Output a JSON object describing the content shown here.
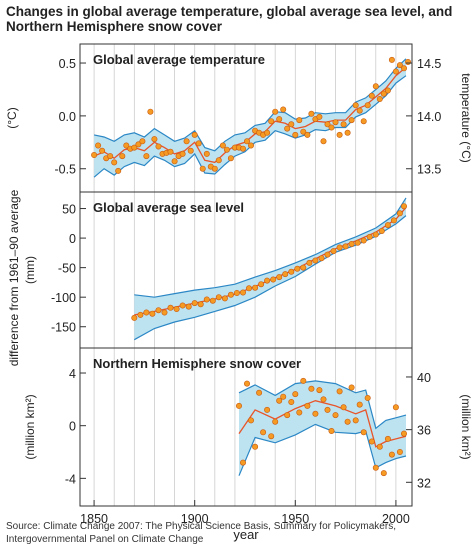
{
  "title": "Changes in global average temperature, global average sea level, and Northern Hemisphere snow cover",
  "source": "Source: Climate Change 2007: The Physical Science Basis, Summary for Policymakers, Intergovernmental Panel on Climate Change",
  "colors": {
    "band": "#bde3f1",
    "band_edge": "#2b87c5",
    "curve": "#e8552a",
    "point": "#f59a23",
    "point_edge": "#c85a12",
    "grid": "#cccccc"
  },
  "chart_data": [
    {
      "type": "line",
      "title": "Global average temperature",
      "ylabel": "(°C)",
      "y2label": "temperature (°C)",
      "xlim": [
        1843,
        2008
      ],
      "ylim": [
        -0.72,
        0.68
      ],
      "yticks": [
        0.5,
        0.0,
        -0.5
      ],
      "ytick_labels": [
        "0.5",
        "0.0",
        "-0.5"
      ],
      "y2_ticks": [
        14.5,
        14.0,
        13.5
      ],
      "y2_offset": 14.0,
      "ytick_labels_right": [
        "14.5",
        "14.0",
        "13.5"
      ],
      "smooth": {
        "x": [
          1850,
          1855,
          1860,
          1865,
          1870,
          1875,
          1880,
          1885,
          1890,
          1895,
          1900,
          1905,
          1910,
          1915,
          1920,
          1925,
          1930,
          1935,
          1940,
          1945,
          1950,
          1955,
          1960,
          1965,
          1970,
          1975,
          1980,
          1985,
          1990,
          1995,
          2000,
          2005
        ],
        "y": [
          -0.38,
          -0.34,
          -0.4,
          -0.32,
          -0.3,
          -0.33,
          -0.25,
          -0.3,
          -0.36,
          -0.33,
          -0.25,
          -0.42,
          -0.44,
          -0.35,
          -0.28,
          -0.25,
          -0.17,
          -0.15,
          -0.05,
          -0.07,
          -0.12,
          -0.1,
          -0.05,
          -0.06,
          -0.04,
          -0.04,
          0.06,
          0.1,
          0.18,
          0.26,
          0.38,
          0.46
        ]
      },
      "band_upper": [
        -0.18,
        -0.2,
        -0.24,
        -0.18,
        -0.16,
        -0.2,
        -0.12,
        -0.18,
        -0.24,
        -0.21,
        -0.14,
        -0.3,
        -0.33,
        -0.24,
        -0.18,
        -0.16,
        -0.09,
        -0.07,
        0.04,
        0.03,
        -0.03,
        -0.02,
        0.03,
        0.02,
        0.03,
        0.03,
        0.13,
        0.17,
        0.25,
        0.33,
        0.45,
        0.54
      ],
      "band_lower": [
        -0.58,
        -0.5,
        -0.56,
        -0.48,
        -0.44,
        -0.47,
        -0.38,
        -0.42,
        -0.48,
        -0.45,
        -0.36,
        -0.54,
        -0.55,
        -0.46,
        -0.38,
        -0.34,
        -0.25,
        -0.23,
        -0.14,
        -0.17,
        -0.21,
        -0.18,
        -0.13,
        -0.14,
        -0.11,
        -0.11,
        -0.01,
        0.03,
        0.11,
        0.19,
        0.31,
        0.38
      ],
      "points": {
        "x": [
          1850,
          1852,
          1854,
          1856,
          1858,
          1860,
          1862,
          1864,
          1866,
          1868,
          1870,
          1872,
          1874,
          1876,
          1878,
          1880,
          1882,
          1884,
          1886,
          1888,
          1890,
          1892,
          1894,
          1896,
          1898,
          1900,
          1902,
          1904,
          1906,
          1908,
          1910,
          1912,
          1914,
          1916,
          1918,
          1920,
          1922,
          1924,
          1926,
          1928,
          1930,
          1932,
          1934,
          1936,
          1938,
          1940,
          1942,
          1944,
          1946,
          1948,
          1950,
          1952,
          1954,
          1956,
          1958,
          1960,
          1962,
          1964,
          1966,
          1968,
          1970,
          1972,
          1974,
          1976,
          1978,
          1980,
          1982,
          1984,
          1986,
          1988,
          1990,
          1992,
          1994,
          1996,
          1998,
          2000,
          2002,
          2004,
          2006
        ],
        "y": [
          -0.37,
          -0.28,
          -0.33,
          -0.4,
          -0.38,
          -0.44,
          -0.52,
          -0.38,
          -0.28,
          -0.31,
          -0.3,
          -0.27,
          -0.24,
          -0.38,
          0.04,
          -0.22,
          -0.29,
          -0.36,
          -0.35,
          -0.34,
          -0.43,
          -0.38,
          -0.36,
          -0.24,
          -0.33,
          -0.18,
          -0.26,
          -0.5,
          -0.36,
          -0.48,
          -0.5,
          -0.42,
          -0.28,
          -0.32,
          -0.4,
          -0.3,
          -0.3,
          -0.31,
          -0.24,
          -0.28,
          -0.14,
          -0.16,
          -0.18,
          -0.16,
          -0.05,
          0.04,
          -0.03,
          0.06,
          -0.12,
          -0.08,
          -0.18,
          -0.04,
          -0.15,
          -0.18,
          0.02,
          -0.03,
          -0.01,
          -0.24,
          -0.08,
          -0.11,
          -0.06,
          -0.18,
          -0.08,
          -0.16,
          -0.04,
          0.1,
          0.05,
          -0.05,
          0.1,
          0.19,
          0.28,
          0.16,
          0.21,
          0.24,
          0.53,
          0.42,
          0.48,
          0.45,
          0.51
        ]
      }
    },
    {
      "type": "line",
      "title": "Global average sea level",
      "ylabel": "(mm)",
      "xlim": [
        1843,
        2008
      ],
      "ylim": [
        -186,
        78
      ],
      "yticks": [
        50,
        0,
        -50,
        -100,
        -150
      ],
      "ytick_labels": [
        "50",
        "0",
        "-50",
        "-100",
        "-150"
      ],
      "smooth": {
        "x": [
          1870,
          1880,
          1890,
          1900,
          1910,
          1920,
          1930,
          1940,
          1950,
          1960,
          1970,
          1980,
          1990,
          2000,
          2005
        ],
        "y": [
          -130,
          -124,
          -117,
          -110,
          -103,
          -95,
          -82,
          -67,
          -53,
          -35,
          -18,
          -5,
          10,
          32,
          52
        ]
      },
      "band_upper": [
        -96,
        -100,
        -94,
        -88,
        -84,
        -78,
        -66,
        -55,
        -42,
        -28,
        -11,
        2,
        17,
        41,
        68
      ],
      "band_lower": [
        -172,
        -153,
        -142,
        -134,
        -124,
        -114,
        -100,
        -81,
        -65,
        -44,
        -24,
        -12,
        3,
        24,
        38
      ],
      "points": {
        "x": [
          1870,
          1873,
          1876,
          1879,
          1882,
          1885,
          1888,
          1891,
          1894,
          1897,
          1900,
          1903,
          1906,
          1909,
          1912,
          1915,
          1918,
          1921,
          1924,
          1927,
          1930,
          1933,
          1936,
          1939,
          1942,
          1945,
          1948,
          1951,
          1954,
          1957,
          1960,
          1963,
          1966,
          1969,
          1972,
          1975,
          1978,
          1981,
          1984,
          1987,
          1990,
          1993,
          1996,
          1999,
          2002,
          2004
        ],
        "y": [
          -135,
          -130,
          -126,
          -128,
          -122,
          -126,
          -118,
          -120,
          -114,
          -116,
          -110,
          -112,
          -104,
          -106,
          -100,
          -102,
          -96,
          -93,
          -92,
          -85,
          -84,
          -78,
          -72,
          -70,
          -66,
          -61,
          -57,
          -52,
          -50,
          -42,
          -38,
          -34,
          -28,
          -22,
          -16,
          -14,
          -10,
          -8,
          -4,
          2,
          6,
          12,
          22,
          30,
          42,
          54
        ]
      }
    },
    {
      "type": "line",
      "title": "Northern Hemisphere snow cover",
      "ylabel": "(million km²)",
      "y2label": "(million km²)",
      "xlim": [
        1843,
        2008
      ],
      "ylim": [
        -6.1,
        5.9
      ],
      "yticks": [
        4,
        0,
        -4
      ],
      "ytick_labels": [
        "4",
        "0",
        "-4"
      ],
      "y2_ticks": [
        40,
        36,
        32
      ],
      "y2_offset": 36.3,
      "ytick_labels_right": [
        "40",
        "36",
        "32"
      ],
      "smooth": {
        "x": [
          1922,
          1930,
          1940,
          1950,
          1960,
          1970,
          1980,
          1985,
          1990,
          1995,
          2000,
          2005
        ],
        "y": [
          -0.6,
          1.2,
          0.5,
          1.3,
          1.9,
          1.5,
          0.9,
          1.2,
          -1.6,
          -1.2,
          -1.0,
          -0.8
        ]
      },
      "band_upper": [
        2.5,
        3.1,
        2.3,
        3.2,
        3.4,
        3.2,
        2.5,
        2.7,
        -0.2,
        0.4,
        0.6,
        0.8
      ],
      "band_lower": [
        -3.8,
        -0.9,
        -1.3,
        -0.7,
        0.1,
        -0.5,
        -0.6,
        -0.4,
        -3.2,
        -2.8,
        -2.5,
        -2.3
      ],
      "points": {
        "x": [
          1922,
          1924,
          1926,
          1928,
          1930,
          1932,
          1934,
          1936,
          1938,
          1940,
          1942,
          1944,
          1946,
          1948,
          1950,
          1952,
          1954,
          1956,
          1958,
          1960,
          1962,
          1964,
          1966,
          1968,
          1970,
          1972,
          1974,
          1976,
          1978,
          1980,
          1982,
          1984,
          1986,
          1988,
          1990,
          1992,
          1994,
          1996,
          1998,
          2000,
          2002,
          2004
        ],
        "y": [
          1.5,
          -2.8,
          3.2,
          0.4,
          -1.6,
          2.5,
          -0.5,
          1.2,
          -0.8,
          0.3,
          1.9,
          2.2,
          0.8,
          1.8,
          2.4,
          1.0,
          3.4,
          1.5,
          2.8,
          0.9,
          2.7,
          2.0,
          1.2,
          -0.4,
          0.8,
          2.6,
          1.4,
          0.3,
          2.9,
          0.4,
          1.6,
          -0.5,
          2.1,
          -1.2,
          -3.2,
          -1.6,
          -3.6,
          -1.0,
          -2.2,
          1.4,
          -2.0,
          -0.6
        ]
      }
    }
  ],
  "xaxis": {
    "label": "year",
    "ticks": [
      1850,
      1900,
      1950,
      2000
    ],
    "tick_labels": [
      "1850",
      "1900",
      "1950",
      "2000"
    ],
    "grid_years": [
      1850,
      1860,
      1870,
      1880,
      1890,
      1900,
      1910,
      1920,
      1930,
      1940,
      1950,
      1960,
      1970,
      1980,
      1990,
      2000
    ]
  },
  "shared_ylabel": "difference from 1961–90 average",
  "shared_y2label": "temperature (°C)"
}
